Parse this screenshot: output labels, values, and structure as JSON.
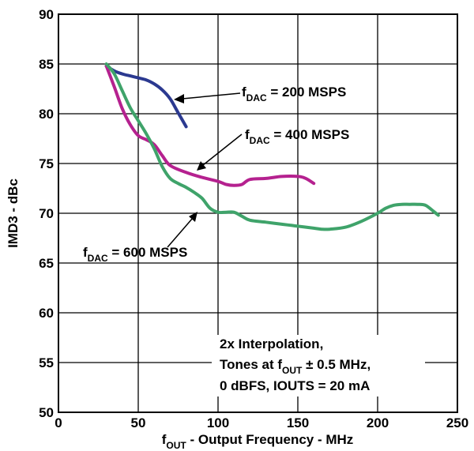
{
  "chart_data": {
    "type": "line",
    "xlim": [
      0,
      250
    ],
    "ylim": [
      50,
      90
    ],
    "x_ticks": [
      "0",
      "50",
      "100",
      "150",
      "200",
      "250"
    ],
    "y_ticks": [
      "50",
      "55",
      "60",
      "65",
      "70",
      "75",
      "80",
      "85",
      "90"
    ],
    "xlabel": {
      "main": "f",
      "sub": "OUT",
      "rest": " - Output Frequency - MHz"
    },
    "ylabel": "IMD3 - dBc",
    "grid": true,
    "series": [
      {
        "name": {
          "main": "f",
          "sub": "DAC",
          "rest": " = 200 MSPS"
        },
        "color": "#2b3990",
        "x": [
          30,
          35,
          40,
          45,
          50,
          55,
          60,
          65,
          70,
          75,
          80
        ],
        "y": [
          84.8,
          84.3,
          84.0,
          83.8,
          83.6,
          83.4,
          83.0,
          82.4,
          81.5,
          80.1,
          78.7
        ]
      },
      {
        "name": {
          "main": "f",
          "sub": "DAC",
          "rest": " = 400 MSPS"
        },
        "color": "#b5218f",
        "x": [
          30,
          35,
          40,
          45,
          50,
          55,
          60,
          65,
          70,
          80,
          90,
          100,
          105,
          110,
          115,
          120,
          130,
          140,
          150,
          155,
          160
        ],
        "y": [
          84.8,
          82.7,
          80.5,
          78.9,
          77.8,
          77.4,
          76.9,
          75.8,
          74.8,
          74.1,
          73.6,
          73.2,
          72.9,
          72.8,
          72.9,
          73.4,
          73.5,
          73.7,
          73.7,
          73.5,
          73.0
        ]
      },
      {
        "name": {
          "main": "f",
          "sub": "DAC",
          "rest": " = 600 MSPS"
        },
        "color": "#3fa36a",
        "x": [
          30,
          35,
          40,
          45,
          50,
          55,
          60,
          65,
          70,
          75,
          80,
          85,
          90,
          95,
          100,
          105,
          110,
          115,
          120,
          130,
          140,
          150,
          160,
          165,
          170,
          180,
          190,
          200,
          205,
          210,
          215,
          220,
          225,
          230,
          235,
          238
        ],
        "y": [
          85.0,
          84.0,
          82.3,
          80.6,
          79.3,
          78.0,
          76.5,
          74.7,
          73.5,
          73.0,
          72.6,
          72.1,
          71.5,
          70.5,
          70.1,
          70.1,
          70.1,
          69.7,
          69.3,
          69.1,
          68.9,
          68.7,
          68.5,
          68.4,
          68.4,
          68.6,
          69.2,
          70.0,
          70.5,
          70.8,
          70.9,
          70.9,
          70.9,
          70.8,
          70.2,
          69.8
        ]
      }
    ],
    "annotations": [
      {
        "main": "f",
        "sub": "DAC",
        "rest": " = 200 MSPS"
      },
      {
        "main": "f",
        "sub": "DAC",
        "rest": " = 400 MSPS"
      },
      {
        "main": "f",
        "sub": "DAC",
        "rest": " = 600 MSPS"
      }
    ],
    "note": {
      "line1": "2x Interpolation,",
      "line2_pre": "Tones at f",
      "line2_sub": "OUT",
      "line2_post": " ± 0.5 MHz,",
      "line3": "0 dBFS, IOUTS = 20 mA"
    }
  }
}
